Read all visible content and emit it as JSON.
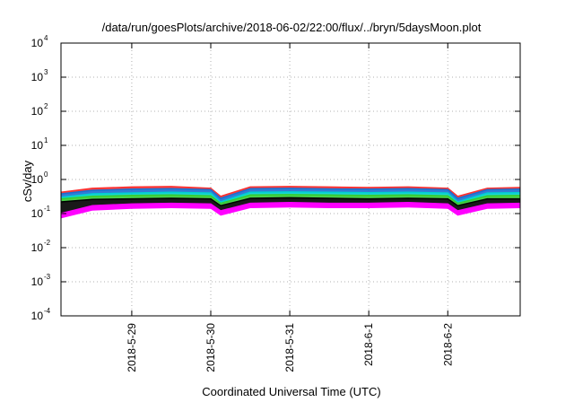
{
  "chart_data": {
    "type": "area",
    "title": "/data/run/goesPlots/archive/2018-06-02/22:00/flux/../bryn/5daysMoon.plot",
    "xlabel": "Coordinated Universal Time (UTC)",
    "ylabel": "cSv/day",
    "yscale": "log",
    "ylim": [
      0.0001,
      10000
    ],
    "xlim": [
      "2018-05-28T02:30",
      "2018-06-02T22:00"
    ],
    "grid": true,
    "y_ticks": [
      {
        "base": "10",
        "exp": "-4"
      },
      {
        "base": "10",
        "exp": "-3"
      },
      {
        "base": "10",
        "exp": "-2"
      },
      {
        "base": "10",
        "exp": "-1"
      },
      {
        "base": "10",
        "exp": "0"
      },
      {
        "base": "10",
        "exp": "1"
      },
      {
        "base": "10",
        "exp": "2"
      },
      {
        "base": "10",
        "exp": "3"
      },
      {
        "base": "10",
        "exp": "4"
      }
    ],
    "x_ticks": [
      "2018-5-29",
      "2018-5-30",
      "2018-5-31",
      "2018-6-1",
      "2018-6-2"
    ],
    "x": [
      "2018-05-28T02:30",
      "2018-05-28T12:00",
      "2018-05-29T00:00",
      "2018-05-29T12:00",
      "2018-05-30T00:00",
      "2018-05-30T03:00",
      "2018-05-30T12:00",
      "2018-05-31T00:00",
      "2018-05-31T12:00",
      "2018-06-01T00:00",
      "2018-06-01T12:00",
      "2018-06-02T00:00",
      "2018-06-02T03:00",
      "2018-06-02T12:00",
      "2018-06-02T22:00"
    ],
    "series": [
      {
        "color": "#ff00ff",
        "values": [
          0.1,
          0.17,
          0.19,
          0.2,
          0.19,
          0.12,
          0.2,
          0.21,
          0.2,
          0.2,
          0.21,
          0.19,
          0.12,
          0.19,
          0.2
        ]
      },
      {
        "color": "#ff3030",
        "values": [
          0.42,
          0.55,
          0.6,
          0.62,
          0.55,
          0.32,
          0.6,
          0.62,
          0.6,
          0.58,
          0.6,
          0.55,
          0.32,
          0.55,
          0.58
        ]
      },
      {
        "color": "#1a6fd0",
        "values": [
          0.38,
          0.48,
          0.52,
          0.54,
          0.5,
          0.28,
          0.54,
          0.55,
          0.53,
          0.52,
          0.54,
          0.5,
          0.28,
          0.5,
          0.52
        ]
      },
      {
        "color": "#00d0d0",
        "values": [
          0.3,
          0.38,
          0.4,
          0.42,
          0.4,
          0.22,
          0.42,
          0.43,
          0.42,
          0.41,
          0.42,
          0.4,
          0.22,
          0.4,
          0.41
        ]
      },
      {
        "color": "#33cc33",
        "values": [
          0.27,
          0.32,
          0.34,
          0.35,
          0.33,
          0.2,
          0.35,
          0.36,
          0.35,
          0.34,
          0.35,
          0.33,
          0.2,
          0.33,
          0.34
        ]
      },
      {
        "color": "#000000",
        "values": [
          0.22,
          0.26,
          0.27,
          0.28,
          0.27,
          0.17,
          0.28,
          0.29,
          0.28,
          0.27,
          0.28,
          0.27,
          0.17,
          0.27,
          0.27
        ]
      }
    ]
  }
}
